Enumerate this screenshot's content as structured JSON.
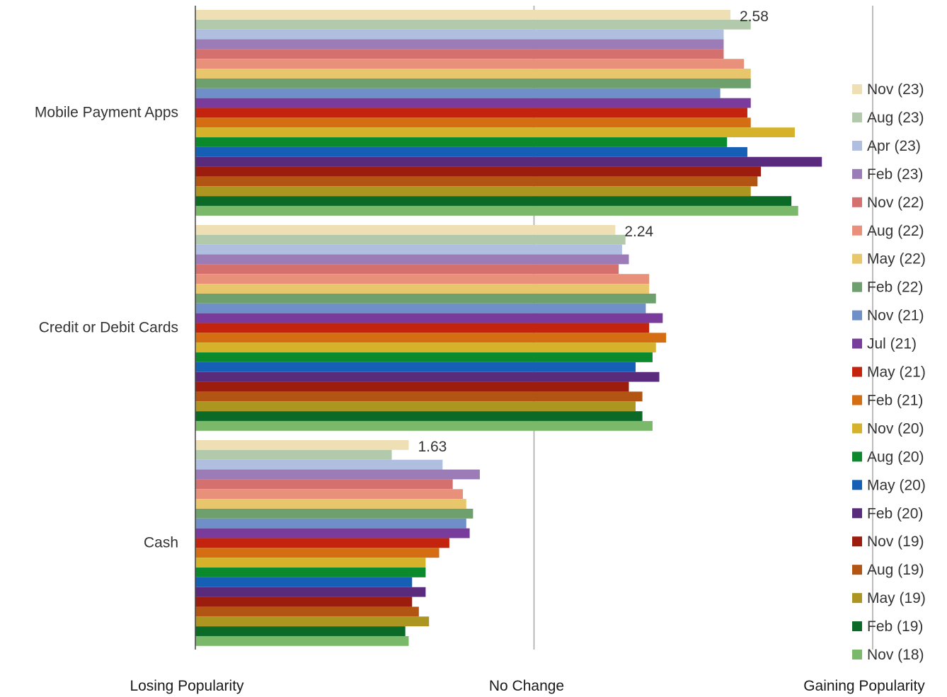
{
  "chart_data": {
    "type": "bar",
    "orientation": "horizontal",
    "categories": [
      "Mobile Payment Apps",
      "Credit or Debit Cards",
      "Cash"
    ],
    "x_tick_labels": [
      "Losing Popularity",
      "No Change",
      "Gaining Popularity"
    ],
    "xlim": [
      1,
      3
    ],
    "grid": true,
    "legend_position": "right",
    "series": [
      {
        "name": "Nov (23)",
        "color": "#efdfb5",
        "values": [
          2.58,
          2.24,
          1.63
        ]
      },
      {
        "name": "Aug (23)",
        "color": "#b3c9ac",
        "values": [
          2.64,
          2.27,
          1.58
        ]
      },
      {
        "name": "Apr (23)",
        "color": "#b0bedf",
        "values": [
          2.56,
          2.26,
          1.73
        ]
      },
      {
        "name": "Feb (23)",
        "color": "#9b7cb6",
        "values": [
          2.56,
          2.28,
          1.84
        ]
      },
      {
        "name": "Nov (22)",
        "color": "#d4716f",
        "values": [
          2.56,
          2.25,
          1.76
        ]
      },
      {
        "name": "Aug (22)",
        "color": "#e8907a",
        "values": [
          2.62,
          2.34,
          1.79
        ]
      },
      {
        "name": "May (22)",
        "color": "#e7c66c",
        "values": [
          2.64,
          2.34,
          1.8
        ]
      },
      {
        "name": "Feb (22)",
        "color": "#6ea06e",
        "values": [
          2.64,
          2.36,
          1.82
        ]
      },
      {
        "name": "Nov (21)",
        "color": "#6f8fc9",
        "values": [
          2.55,
          2.33,
          1.8
        ]
      },
      {
        "name": "Jul (21)",
        "color": "#7a3c9c",
        "values": [
          2.64,
          2.38,
          1.81
        ]
      },
      {
        "name": "May (21)",
        "color": "#c4240e",
        "values": [
          2.63,
          2.34,
          1.75
        ]
      },
      {
        "name": "Feb (21)",
        "color": "#d56d12",
        "values": [
          2.64,
          2.39,
          1.72
        ]
      },
      {
        "name": "Nov (20)",
        "color": "#d6b22a",
        "values": [
          2.77,
          2.36,
          1.68
        ]
      },
      {
        "name": "Aug (20)",
        "color": "#0a8a2d",
        "values": [
          2.57,
          2.35,
          1.68
        ]
      },
      {
        "name": "May (20)",
        "color": "#1560b5",
        "values": [
          2.63,
          2.3,
          1.64
        ]
      },
      {
        "name": "Feb (20)",
        "color": "#5a2a7c",
        "values": [
          2.85,
          2.37,
          1.68
        ]
      },
      {
        "name": "Nov (19)",
        "color": "#9c1d0e",
        "values": [
          2.67,
          2.28,
          1.64
        ]
      },
      {
        "name": "Aug (19)",
        "color": "#b25412",
        "values": [
          2.66,
          2.32,
          1.66
        ]
      },
      {
        "name": "May (19)",
        "color": "#ac9520",
        "values": [
          2.64,
          2.3,
          1.69
        ]
      },
      {
        "name": "Feb (19)",
        "color": "#0b6a26",
        "values": [
          2.76,
          2.32,
          1.62
        ]
      },
      {
        "name": "Nov (18)",
        "color": "#7ab86a",
        "values": [
          2.78,
          2.35,
          1.63
        ]
      }
    ],
    "data_labels": [
      "2.58",
      "2.24",
      "1.63"
    ]
  }
}
